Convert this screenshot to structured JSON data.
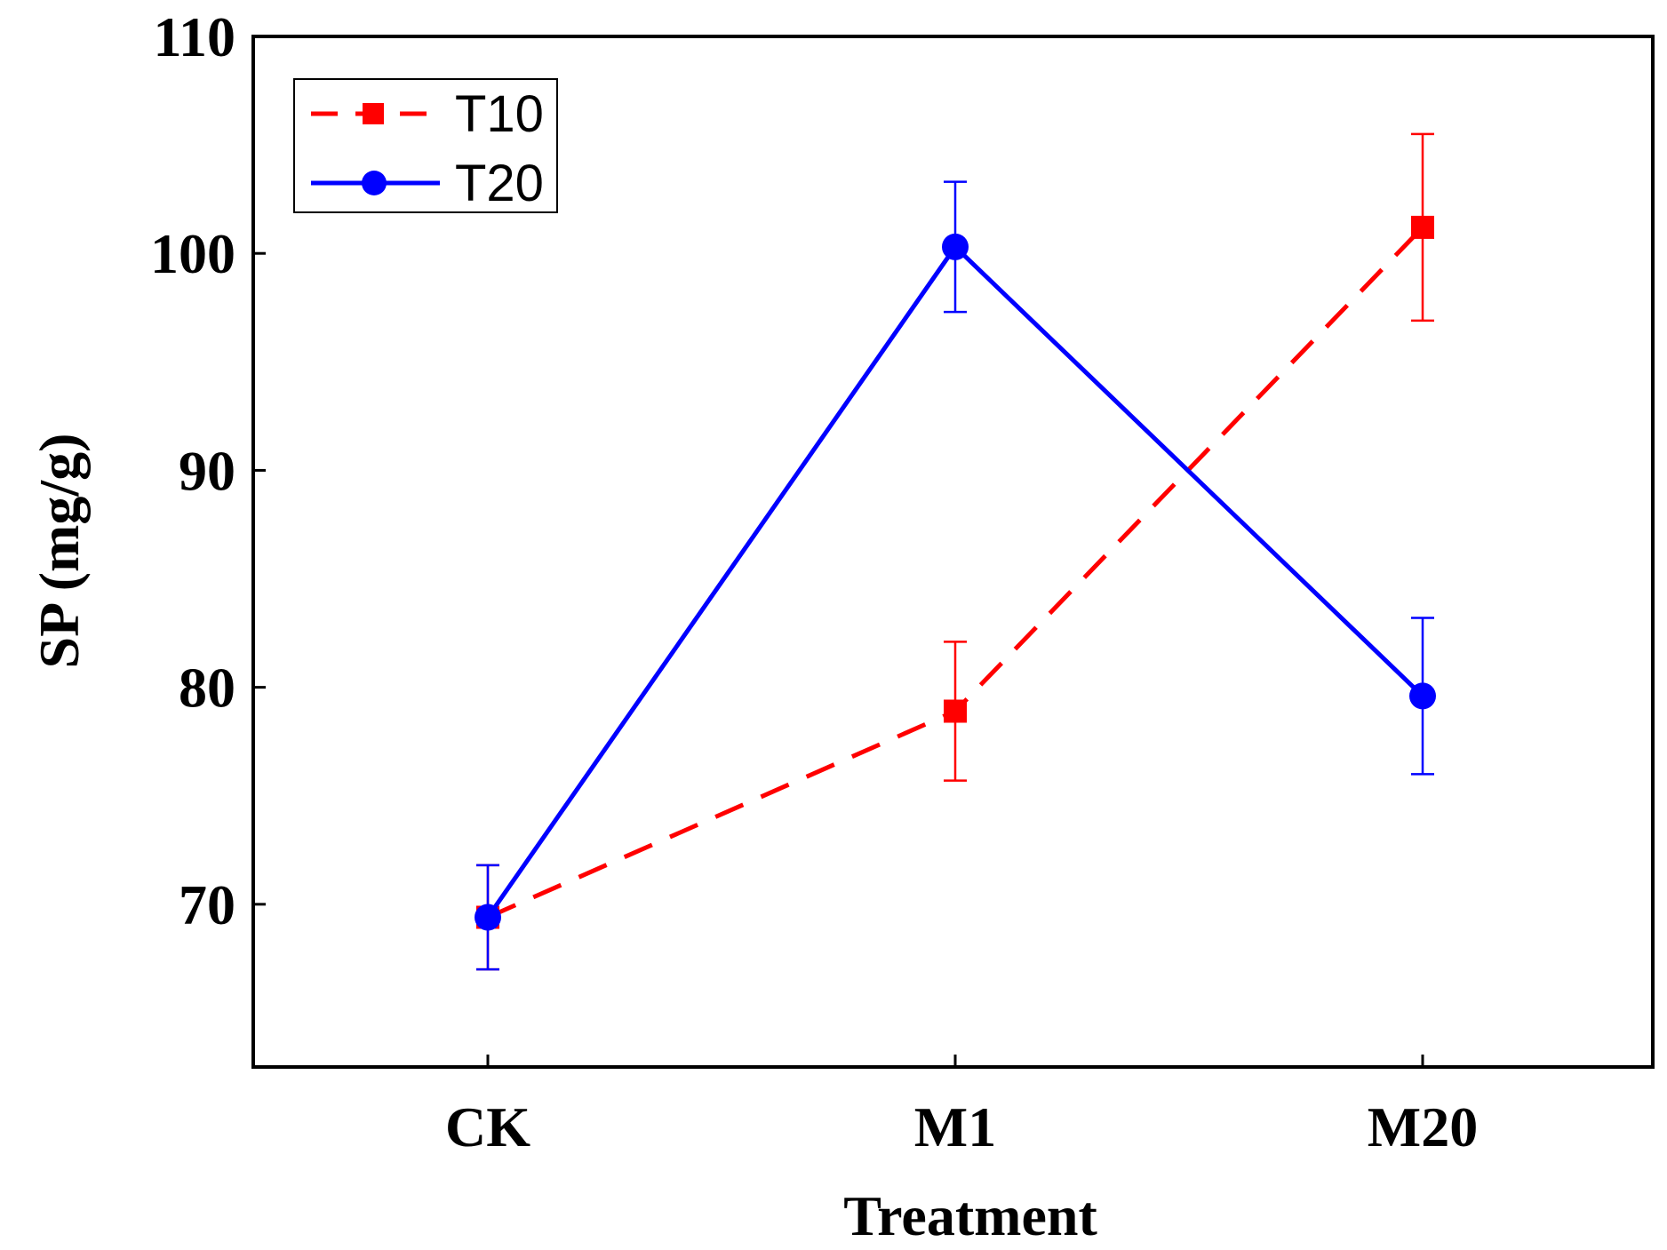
{
  "chart_data": {
    "type": "line",
    "title": "",
    "xlabel": "Treatment",
    "ylabel": "SP (mg/g)",
    "categories": [
      "CK",
      "M1",
      "M20"
    ],
    "ylim": [
      62.5,
      110
    ],
    "yticks": [
      70,
      80,
      90,
      100,
      110
    ],
    "yticklabels": [
      "70",
      "80",
      "90",
      "100",
      "110"
    ],
    "legend_position": "top-left",
    "series": [
      {
        "name": "T10",
        "color": "#ff0000",
        "line_style": "dashed",
        "marker": "square",
        "values": [
          69.4,
          78.9,
          101.2
        ],
        "errors": [
          2.4,
          3.2,
          4.3
        ]
      },
      {
        "name": "T20",
        "color": "#0000ff",
        "line_style": "solid",
        "marker": "circle",
        "values": [
          69.4,
          100.3,
          79.6
        ],
        "errors": [
          2.4,
          3.0,
          3.6
        ]
      }
    ]
  }
}
